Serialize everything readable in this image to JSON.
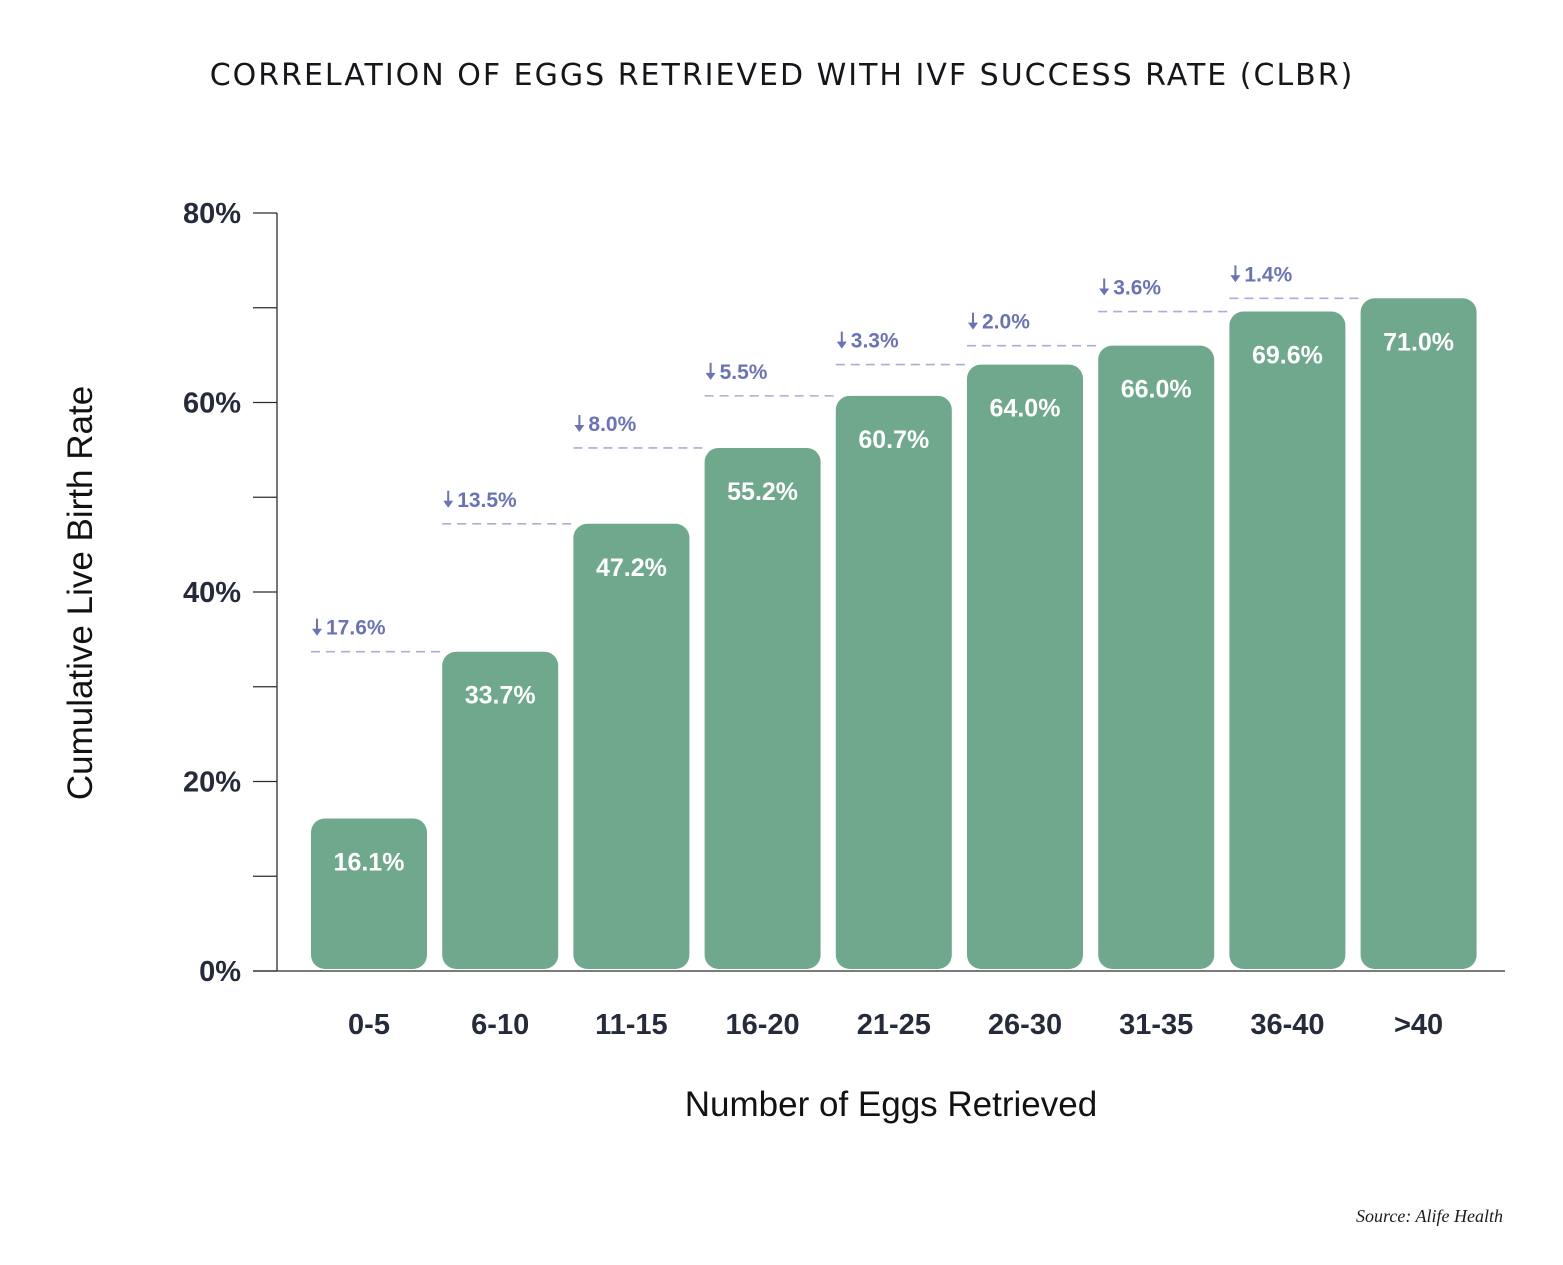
{
  "colors": {
    "bar": "#6fa88d",
    "axis": "#2c2c30",
    "diff": "#6b73b3",
    "dash": "#a7aed8",
    "text": "#262b3c"
  },
  "chart_data": {
    "type": "bar",
    "title": "CORRELATION OF EGGS RETRIEVED WITH IVF SUCCESS RATE (CLBR)",
    "xlabel": "Number of Eggs Retrieved",
    "ylabel": "Cumulative Live Birth Rate",
    "ylim": [
      0,
      80
    ],
    "yticks": [
      0,
      20,
      40,
      60,
      80
    ],
    "ytick_labels": [
      "0%",
      "20%",
      "40%",
      "60%",
      "80%"
    ],
    "minor_ticks": [
      10,
      30,
      50,
      70
    ],
    "categories": [
      "0-5",
      "6-10",
      "11-15",
      "16-20",
      "21-25",
      "26-30",
      "31-35",
      "36-40",
      ">40"
    ],
    "values": [
      16.1,
      33.7,
      47.2,
      55.2,
      60.7,
      64.0,
      66.0,
      69.6,
      71.0
    ],
    "value_labels": [
      "16.1%",
      "33.7%",
      "47.2%",
      "55.2%",
      "60.7%",
      "64.0%",
      "66.0%",
      "69.6%",
      "71.0%"
    ],
    "differences": [
      "17.6%",
      "13.5%",
      "8.0%",
      "5.5%",
      "3.3%",
      "2.0%",
      "3.6%",
      "1.4%"
    ],
    "source": "Source: Alife Health"
  }
}
